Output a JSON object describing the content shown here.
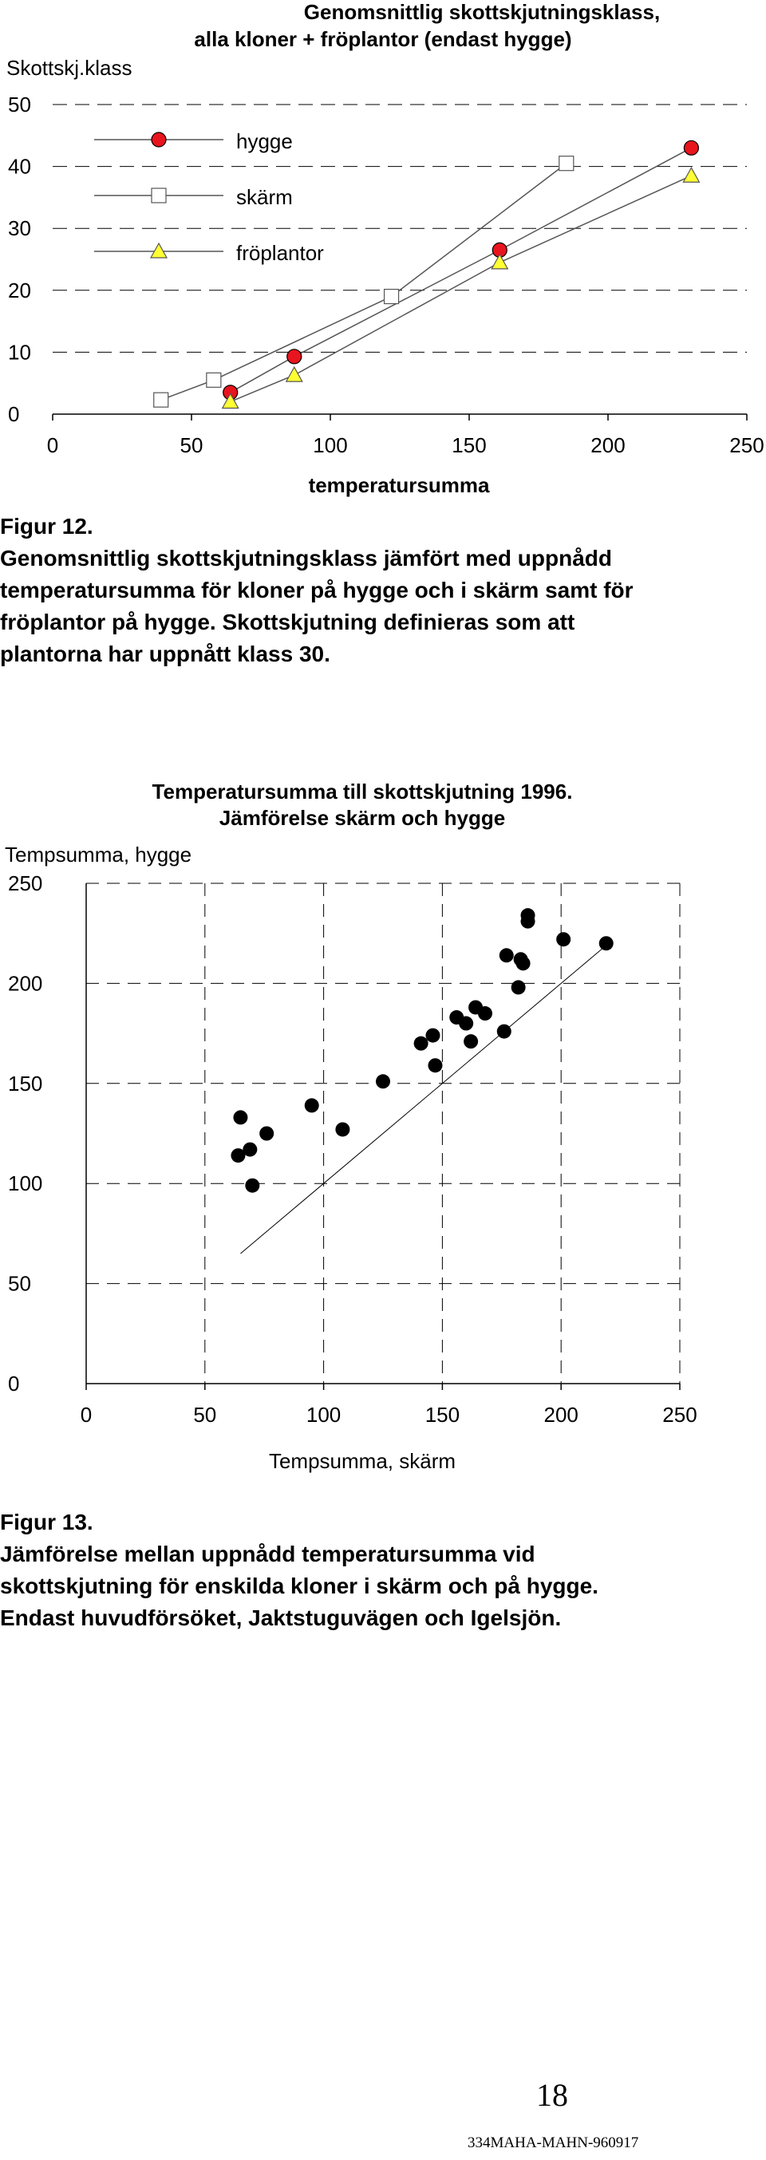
{
  "chart_data": [
    {
      "type": "line",
      "title": "Genomsnittlig skottskjutningsklass, alla kloner + fröplantor (endast hygge)",
      "ylabel": "Skottskj.klass",
      "xlabel": "temperatursumma",
      "xlim": [
        0,
        250
      ],
      "ylim": [
        0,
        50
      ],
      "xticks": [
        0,
        50,
        100,
        150,
        200,
        250
      ],
      "yticks": [
        0,
        10,
        20,
        30,
        40,
        50
      ],
      "grid": "horizontal-dashed",
      "legend": "top-left",
      "series": [
        {
          "name": "hygge",
          "marker": "circle",
          "color": "#e8141e",
          "points": [
            [
              64,
              3.5
            ],
            [
              87,
              9.3
            ],
            [
              161,
              26.5
            ],
            [
              230,
              43
            ]
          ]
        },
        {
          "name": "skärm",
          "marker": "square",
          "color": "#ffffff",
          "points": [
            [
              39,
              2.3
            ],
            [
              58,
              5.5
            ],
            [
              122,
              19
            ],
            [
              185,
              40.5
            ]
          ]
        },
        {
          "name": "fröplantor",
          "marker": "triangle",
          "color": "#ffff33",
          "points": [
            [
              64,
              2
            ],
            [
              87,
              6.3
            ],
            [
              161,
              24.5
            ],
            [
              230,
              38.5
            ]
          ]
        }
      ]
    },
    {
      "type": "scatter",
      "title": "Temperatursumma till skottskjutning 1996.\nJämförelse skärm och hygge",
      "ylabel": "Tempsumma, hygge",
      "xlabel": "Tempsumma, skärm",
      "xlim": [
        0,
        250
      ],
      "ylim": [
        0,
        250
      ],
      "xticks": [
        0,
        50,
        100,
        150,
        200,
        250
      ],
      "yticks": [
        0,
        50,
        100,
        150,
        200,
        250
      ],
      "grid": "both-dashed",
      "reference_line": [
        [
          65,
          65
        ],
        [
          220,
          220
        ]
      ],
      "points": [
        [
          64,
          114
        ],
        [
          65,
          133
        ],
        [
          69,
          117
        ],
        [
          70,
          99
        ],
        [
          76,
          125
        ],
        [
          95,
          139
        ],
        [
          108,
          127
        ],
        [
          125,
          151
        ],
        [
          141,
          170
        ],
        [
          146,
          174
        ],
        [
          147,
          159
        ],
        [
          156,
          183
        ],
        [
          160,
          180
        ],
        [
          162,
          171
        ],
        [
          164,
          188
        ],
        [
          168,
          185
        ],
        [
          176,
          176
        ],
        [
          177,
          214
        ],
        [
          182,
          198
        ],
        [
          183,
          212
        ],
        [
          184,
          210
        ],
        [
          186,
          234
        ],
        [
          186,
          231
        ],
        [
          201,
          222
        ],
        [
          219,
          220
        ]
      ]
    }
  ],
  "captions": {
    "fig12": {
      "number": "Figur 12.",
      "lines": [
        "Genomsnittlig skottskjutningsklass jämfört med uppnådd",
        "temperatursumma för kloner på hygge och i skärm samt för",
        "fröplantor på hygge. Skottskjutning definieras som att",
        "plantorna har uppnått klass 30."
      ]
    },
    "fig13": {
      "number": "Figur 13.",
      "lines": [
        "Jämförelse mellan uppnådd temperatursumma vid",
        "skottskjutning för enskilda kloner i skärm och på hygge.",
        "Endast huvudförsöket, Jaktstuguvägen och Igelsjön."
      ]
    }
  },
  "footer": {
    "page_number": "18",
    "doc_code": "334MAHA-MAHN-960917"
  }
}
